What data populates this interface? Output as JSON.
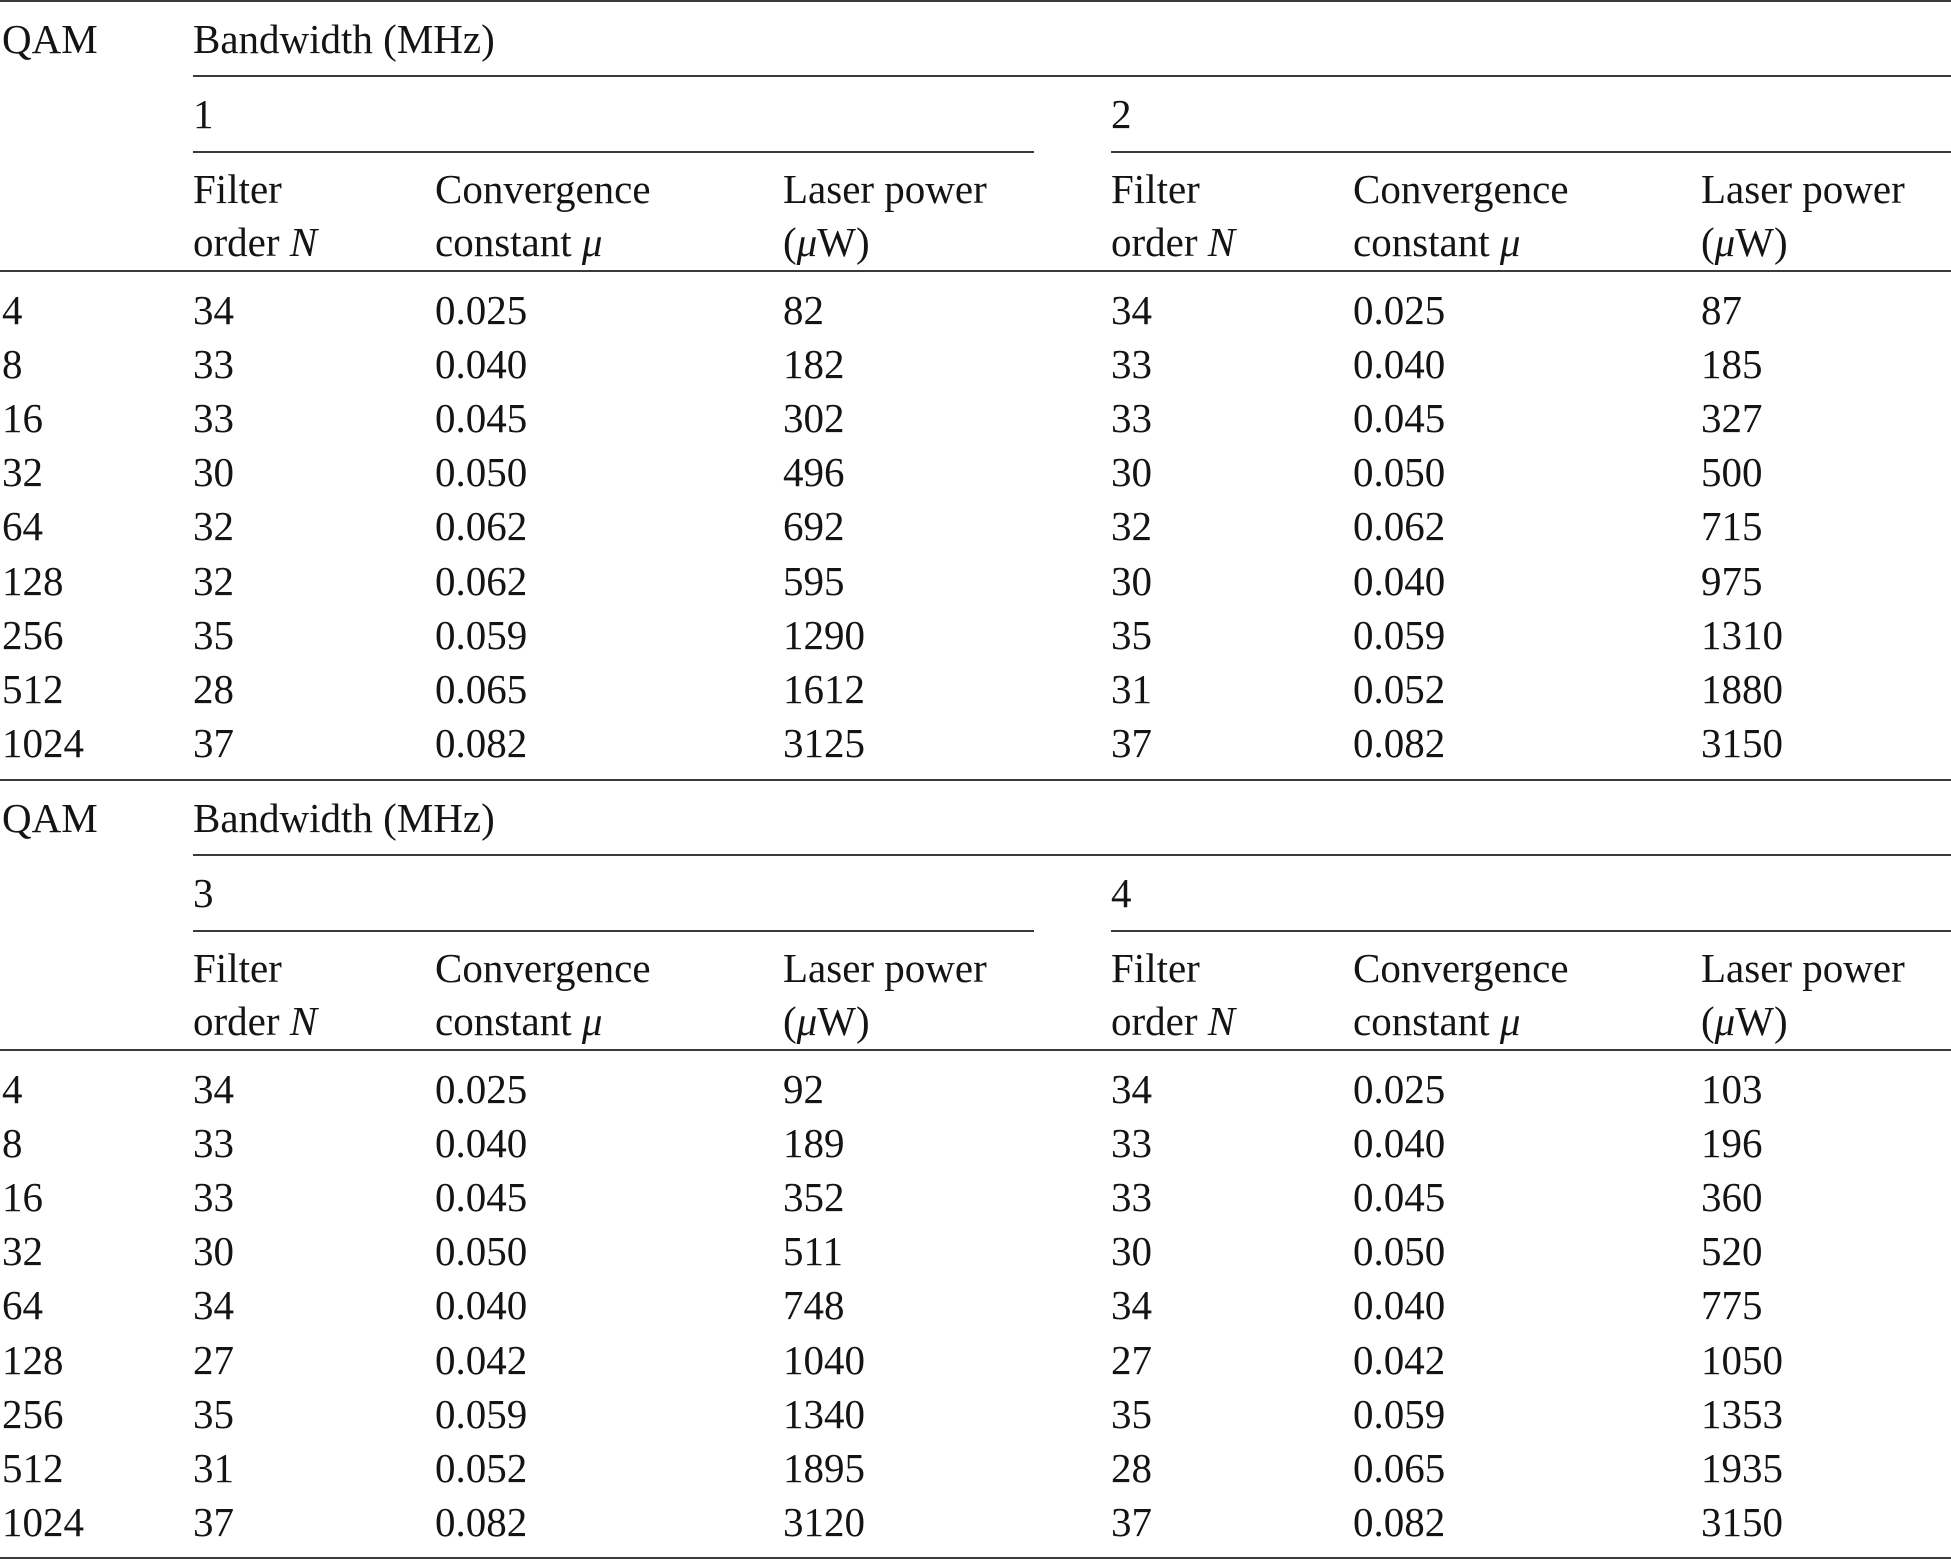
{
  "header": {
    "qam_label": "QAM",
    "bandwidth_label": "Bandwidth (MHz)",
    "filter_line1": "Filter",
    "filter_line2": "order",
    "filter_symbol": "N",
    "conv_line1": "Convergence",
    "conv_line2": "constant",
    "conv_symbol": "μ",
    "laser_line1": "Laser power",
    "laser_open": "(",
    "laser_mu": "μ",
    "laser_unit": "W)"
  },
  "blocks": [
    {
      "bandwidths": [
        "1",
        "2"
      ],
      "rows": [
        [
          "4",
          "34",
          "0.025",
          "82",
          "34",
          "0.025",
          "87"
        ],
        [
          "8",
          "33",
          "0.040",
          "182",
          "33",
          "0.040",
          "185"
        ],
        [
          "16",
          "33",
          "0.045",
          "302",
          "33",
          "0.045",
          "327"
        ],
        [
          "32",
          "30",
          "0.050",
          "496",
          "30",
          "0.050",
          "500"
        ],
        [
          "64",
          "32",
          "0.062",
          "692",
          "32",
          "0.062",
          "715"
        ],
        [
          "128",
          "32",
          "0.062",
          "595",
          "30",
          "0.040",
          "975"
        ],
        [
          "256",
          "35",
          "0.059",
          "1290",
          "35",
          "0.059",
          "1310"
        ],
        [
          "512",
          "28",
          "0.065",
          "1612",
          "31",
          "0.052",
          "1880"
        ],
        [
          "1024",
          "37",
          "0.082",
          "3125",
          "37",
          "0.082",
          "3150"
        ]
      ]
    },
    {
      "bandwidths": [
        "3",
        "4"
      ],
      "rows": [
        [
          "4",
          "34",
          "0.025",
          "92",
          "34",
          "0.025",
          "103"
        ],
        [
          "8",
          "33",
          "0.040",
          "189",
          "33",
          "0.040",
          "196"
        ],
        [
          "16",
          "33",
          "0.045",
          "352",
          "33",
          "0.045",
          "360"
        ],
        [
          "32",
          "30",
          "0.050",
          "511",
          "30",
          "0.050",
          "520"
        ],
        [
          "64",
          "34",
          "0.040",
          "748",
          "34",
          "0.040",
          "775"
        ],
        [
          "128",
          "27",
          "0.042",
          "1040",
          "27",
          "0.042",
          "1050"
        ],
        [
          "256",
          "35",
          "0.059",
          "1340",
          "35",
          "0.059",
          "1353"
        ],
        [
          "512",
          "31",
          "0.052",
          "1895",
          "28",
          "0.065",
          "1935"
        ],
        [
          "1024",
          "37",
          "0.082",
          "3120",
          "37",
          "0.082",
          "3150"
        ]
      ]
    }
  ]
}
